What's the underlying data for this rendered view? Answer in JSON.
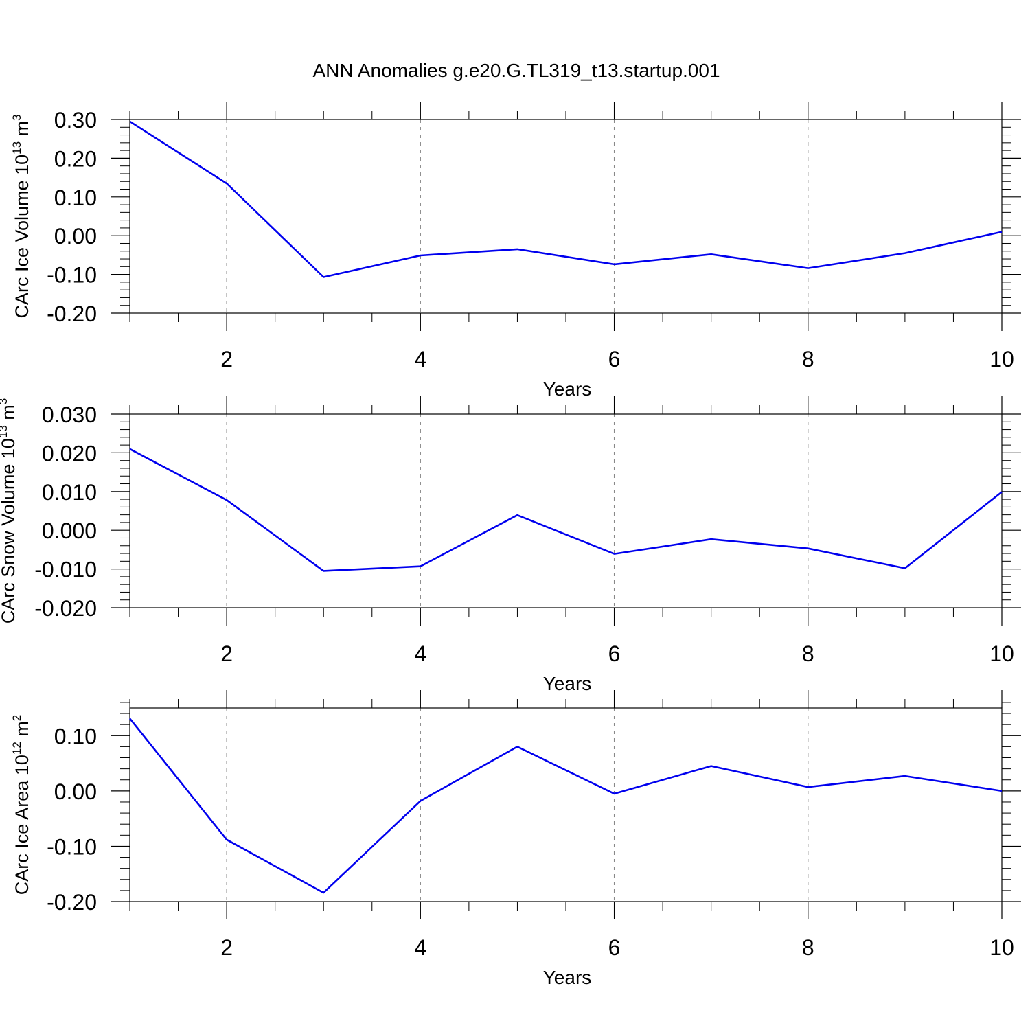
{
  "figure": {
    "title": "ANN Anomalies g.e20.G.TL319_t13.startup.001"
  },
  "chart_data": [
    {
      "type": "line",
      "ylabel": {
        "main": "CArc Ice Volume 10",
        "exp": "13",
        "unit": " m",
        "unit_exp": "3"
      },
      "xlabel": "Years",
      "xlim": [
        1,
        10
      ],
      "xticks": [
        2,
        4,
        6,
        8,
        10
      ],
      "xtick_labels": [
        "2",
        "4",
        "6",
        "8",
        "10"
      ],
      "ylim": [
        -0.2,
        0.3
      ],
      "yticks": [
        0.3,
        0.2,
        0.1,
        0.0,
        -0.1,
        -0.2
      ],
      "ytick_labels": [
        "0.30",
        "0.20",
        "0.10",
        "0.00",
        "-0.10",
        "-0.20"
      ],
      "y_minor_step": 0.02,
      "grid": "vertical dashed at major x ticks",
      "series": [
        {
          "color": "#0000ee",
          "x": [
            1,
            2,
            3,
            4,
            5,
            6,
            7,
            8,
            9,
            10
          ],
          "values": [
            0.295,
            0.135,
            -0.107,
            -0.051,
            -0.035,
            -0.074,
            -0.048,
            -0.084,
            -0.045,
            0.01
          ]
        }
      ]
    },
    {
      "type": "line",
      "ylabel": {
        "main": "CArc Snow Volume 10",
        "exp": "13",
        "unit": " m",
        "unit_exp": "3"
      },
      "xlabel": "Years",
      "xlim": [
        1,
        10
      ],
      "xticks": [
        2,
        4,
        6,
        8,
        10
      ],
      "xtick_labels": [
        "2",
        "4",
        "6",
        "8",
        "10"
      ],
      "ylim": [
        -0.02,
        0.03
      ],
      "yticks": [
        0.03,
        0.02,
        0.01,
        0.0,
        -0.01,
        -0.02
      ],
      "ytick_labels": [
        "0.030",
        "0.020",
        "0.010",
        "0.000",
        "-0.010",
        "-0.020"
      ],
      "y_minor_step": 0.002,
      "grid": "vertical dashed at major x ticks",
      "series": [
        {
          "color": "#0000ee",
          "x": [
            1,
            2,
            3,
            4,
            5,
            6,
            7,
            8,
            9,
            10
          ],
          "values": [
            0.021,
            0.0078,
            -0.0105,
            -0.0093,
            0.0039,
            -0.0061,
            -0.0023,
            -0.0047,
            -0.0098,
            0.0099
          ]
        }
      ]
    },
    {
      "type": "line",
      "ylabel": {
        "main": "CArc Ice Area 10",
        "exp": "12",
        "unit": " m",
        "unit_exp": "2"
      },
      "xlabel": "Years",
      "xlim": [
        1,
        10
      ],
      "xticks": [
        2,
        4,
        6,
        8,
        10
      ],
      "xtick_labels": [
        "2",
        "4",
        "6",
        "8",
        "10"
      ],
      "ylim": [
        -0.2,
        0.15
      ],
      "yticks": [
        0.1,
        0.0,
        -0.1,
        -0.2
      ],
      "ytick_labels": [
        "0.10",
        "0.00",
        "-0.10",
        "-0.20"
      ],
      "y_minor_step": 0.02,
      "grid": "vertical dashed at major x ticks",
      "series": [
        {
          "color": "#0000ee",
          "x": [
            1,
            2,
            3,
            4,
            5,
            6,
            7,
            8,
            9,
            10
          ],
          "values": [
            0.131,
            -0.088,
            -0.184,
            -0.018,
            0.08,
            -0.005,
            0.045,
            0.007,
            0.027,
            0.0
          ]
        }
      ]
    }
  ]
}
